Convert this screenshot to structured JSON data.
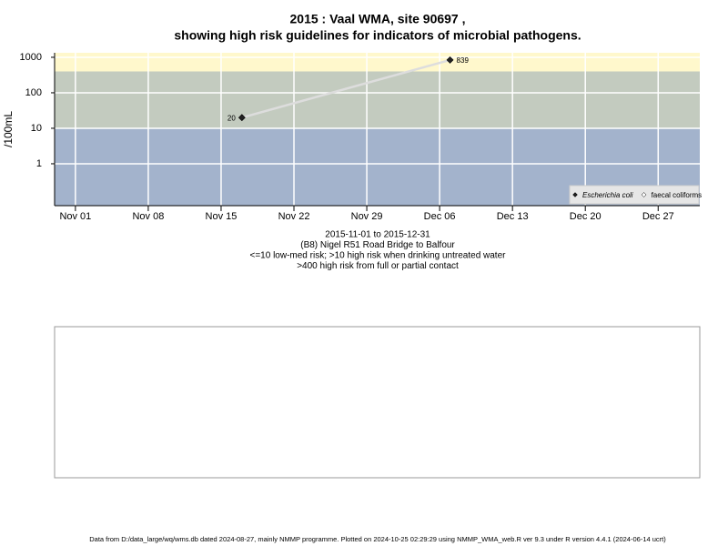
{
  "chart_data": {
    "type": "line",
    "title": "2015 : Vaal WMA, site 90697 ,",
    "title_line2": "showing high risk guidelines for indicators of microbial pathogens.",
    "y_label": "/100mL",
    "subtitle": [
      "2015-11-01 to 2015-12-31",
      "(B8) Nigel R51 Road Bridge to Balfour",
      "<=10 low-med risk; >10 high risk when drinking untreated water",
      ">400 high risk from full or partial contact"
    ],
    "footer": "Data from D:/data_large/wq/wms.db dated 2024-08-27, mainly NMMP programme. Plotted on 2024-10-25 02:29:29 using NMMP_WMA_web.R ver 9.3 under R version 4.4.1 (2024-06-14 ucrt)",
    "x": [
      "2015-11-17",
      "2015-12-07"
    ],
    "series": [
      {
        "name": "Escherichia coli",
        "color": "#222222",
        "line_color": "#dddddd",
        "values": [
          20,
          839
        ]
      },
      {
        "name": "faecal coliforms",
        "color": "#ffffff",
        "values": [
          null,
          null
        ]
      }
    ],
    "xlim": [
      "2015-10-30",
      "2015-12-31"
    ],
    "xticks": [
      {
        "value": "2015-11-01",
        "label": "Nov 01"
      },
      {
        "value": "2015-11-08",
        "label": "Nov 08"
      },
      {
        "value": "2015-11-15",
        "label": "Nov 15"
      },
      {
        "value": "2015-11-22",
        "label": "Nov 22"
      },
      {
        "value": "2015-11-29",
        "label": "Nov 29"
      },
      {
        "value": "2015-12-06",
        "label": "Dec 06"
      },
      {
        "value": "2015-12-13",
        "label": "Dec 13"
      },
      {
        "value": "2015-12-20",
        "label": "Dec 20"
      },
      {
        "value": "2015-12-27",
        "label": "Dec 27"
      }
    ],
    "ylim": [
      0.066,
      1340
    ],
    "yticks": [
      1,
      10,
      100,
      1000
    ],
    "log_y": true,
    "grid": true,
    "band_breaks": [
      10,
      400
    ],
    "band_colors": [
      "#a3b3cc",
      "#c3cbbf",
      "#fff8cc"
    ],
    "legend": "bottom-right"
  }
}
